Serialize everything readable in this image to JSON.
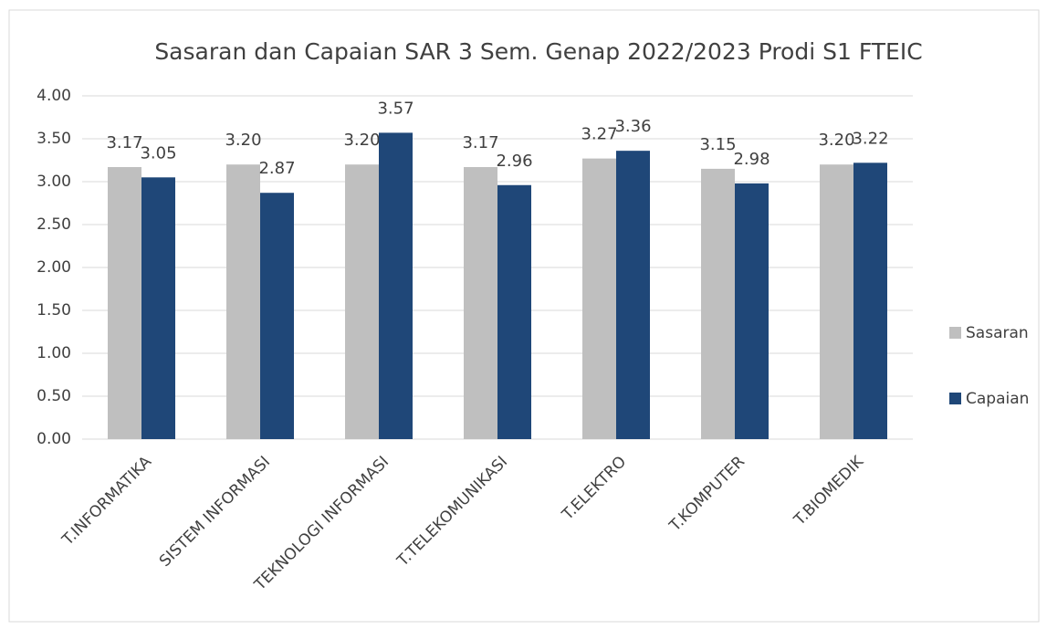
{
  "chart_data": {
    "type": "bar",
    "title": "Sasaran dan Capaian SAR 3 Sem. Genap 2022/2023 Prodi S1 FTEIC",
    "categories": [
      "T.INFORMATIKA",
      "SISTEM INFORMASI",
      "TEKNOLOGI INFORMASI",
      "T.TELEKOMUNIKASI",
      "T.ELEKTRO",
      "T.KOMPUTER",
      "T.BIOMEDIK"
    ],
    "series": [
      {
        "name": "Sasaran",
        "color": "#bfbfbf",
        "values": [
          3.17,
          3.2,
          3.2,
          3.17,
          3.27,
          3.15,
          3.2
        ],
        "value_labels": [
          "3.17",
          "3.20",
          "3.20",
          "3.17",
          "3.27",
          "3.15",
          "3.20"
        ]
      },
      {
        "name": "Capaian",
        "color": "#1f4778",
        "values": [
          3.05,
          2.87,
          3.57,
          2.96,
          3.36,
          2.98,
          3.22
        ],
        "value_labels": [
          "3.05",
          "2.87",
          "3.57",
          "2.96",
          "3.36",
          "2.98",
          "3.22"
        ]
      }
    ],
    "ylim": [
      0,
      4
    ],
    "yticks": [
      {
        "value": 0,
        "label": "0.00"
      },
      {
        "value": 0.5,
        "label": "0.50"
      },
      {
        "value": 1,
        "label": "1.00"
      },
      {
        "value": 1.5,
        "label": "1.50"
      },
      {
        "value": 2,
        "label": "2.00"
      },
      {
        "value": 2.5,
        "label": "2.50"
      },
      {
        "value": 3,
        "label": "3.00"
      },
      {
        "value": 3.5,
        "label": "3.50"
      },
      {
        "value": 4,
        "label": "4.00"
      }
    ],
    "grid": true,
    "legend": "right"
  }
}
